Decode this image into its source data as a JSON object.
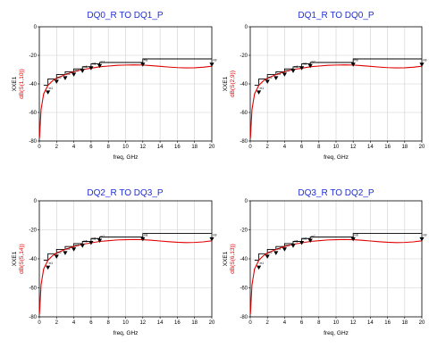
{
  "chart_data": [
    {
      "type": "line",
      "title": "DQ0_R TO DQ1_P",
      "xlabel": "freq, GHz",
      "ylabel_top": "XXE1",
      "ylabel": "dB(S(1,10))",
      "xlim": [
        0,
        20
      ],
      "ylim": [
        -80,
        0
      ],
      "xticks": [
        0,
        2,
        4,
        6,
        8,
        10,
        12,
        14,
        16,
        18,
        20
      ],
      "yticks": [
        0,
        -20,
        -40,
        -60,
        -80
      ],
      "grid": true,
      "series": [
        {
          "name": "dB(S(1,10))",
          "color": "#e00000",
          "x": [
            0.02,
            0.2,
            0.5,
            1,
            1.5,
            2,
            3,
            4,
            5,
            6,
            7,
            8,
            9,
            10,
            11,
            12,
            13,
            14,
            15,
            16,
            17,
            18,
            19,
            20
          ],
          "y": [
            -78,
            -58,
            -47,
            -41,
            -38,
            -36,
            -33.5,
            -31.5,
            -30,
            -29,
            -28,
            -27.5,
            -27,
            -26.8,
            -26.7,
            -26.8,
            -27.2,
            -27.7,
            -28.2,
            -28.6,
            -28.8,
            -28.7,
            -28.3,
            -27.6
          ]
        }
      ],
      "markers": {
        "x": [
          1,
          2,
          3,
          4,
          5,
          6,
          7,
          12,
          20
        ],
        "y": [
          -46.5,
          -39,
          -36.5,
          -34,
          -31.5,
          -29.5,
          -28,
          -27,
          -27
        ],
        "labels": [
          "m1",
          "m2",
          "m3",
          "m4",
          "m5",
          "m6",
          "m7",
          "m8",
          "m9"
        ]
      },
      "steps": {
        "x": [
          0.5,
          1,
          2,
          3,
          4,
          5,
          6,
          7,
          12,
          20
        ],
        "y": [
          -41,
          -36.5,
          -33.5,
          -31.5,
          -29.5,
          -28,
          -26,
          -25,
          -22.5,
          -22.5
        ]
      }
    },
    {
      "type": "line",
      "title": "DQ1_R TO DQ0_P",
      "xlabel": "freq, GHz",
      "ylabel_top": "XXE1",
      "ylabel": "dB(S(2,9))",
      "xlim": [
        0,
        20
      ],
      "ylim": [
        -80,
        0
      ],
      "xticks": [
        0,
        2,
        4,
        6,
        8,
        10,
        12,
        14,
        16,
        18,
        20
      ],
      "yticks": [
        0,
        -20,
        -40,
        -60,
        -80
      ],
      "grid": true,
      "series": [
        {
          "name": "dB(S(2,9))",
          "color": "#e00000",
          "x": [
            0.02,
            0.2,
            0.5,
            1,
            1.5,
            2,
            3,
            4,
            5,
            6,
            7,
            8,
            9,
            10,
            11,
            12,
            13,
            14,
            15,
            16,
            17,
            18,
            19,
            20
          ],
          "y": [
            -78,
            -58,
            -47,
            -41,
            -38,
            -36,
            -33.5,
            -31.5,
            -30,
            -29,
            -28,
            -27.5,
            -27,
            -26.8,
            -26.7,
            -26.8,
            -27.2,
            -27.7,
            -28.2,
            -28.6,
            -28.8,
            -28.7,
            -28.3,
            -27.6
          ]
        }
      ],
      "markers": {
        "x": [
          1,
          2,
          3,
          4,
          5,
          6,
          7,
          12,
          20
        ],
        "y": [
          -46.5,
          -39,
          -36.5,
          -34,
          -31.5,
          -29.5,
          -28,
          -27,
          -27
        ],
        "labels": [
          "m1",
          "m2",
          "m3",
          "m4",
          "m5",
          "m6",
          "m7",
          "m8",
          "m9"
        ]
      },
      "steps": {
        "x": [
          0.5,
          1,
          2,
          3,
          4,
          5,
          6,
          7,
          12,
          20
        ],
        "y": [
          -41,
          -36.5,
          -33.5,
          -31.5,
          -29.5,
          -28,
          -26,
          -25,
          -22.5,
          -22.5
        ]
      }
    },
    {
      "type": "line",
      "title": "DQ2_R TO DQ3_P",
      "xlabel": "freq, GHz",
      "ylabel_top": "XXE1",
      "ylabel": "dB(S(5,14))",
      "xlim": [
        0,
        20
      ],
      "ylim": [
        -80,
        0
      ],
      "xticks": [
        0,
        2,
        4,
        6,
        8,
        10,
        12,
        14,
        16,
        18,
        20
      ],
      "yticks": [
        0,
        -20,
        -40,
        -60,
        -80
      ],
      "grid": true,
      "series": [
        {
          "name": "dB(S(5,14))",
          "color": "#e00000",
          "x": [
            0.02,
            0.2,
            0.5,
            1,
            1.5,
            2,
            3,
            4,
            5,
            6,
            7,
            8,
            9,
            10,
            11,
            12,
            13,
            14,
            15,
            16,
            17,
            18,
            19,
            20
          ],
          "y": [
            -78,
            -58,
            -47,
            -41,
            -38,
            -36,
            -33.5,
            -31.5,
            -30,
            -29,
            -28,
            -27.5,
            -27,
            -26.8,
            -26.7,
            -26.8,
            -27.2,
            -27.7,
            -28.2,
            -28.6,
            -28.8,
            -28.7,
            -28.3,
            -27.6
          ]
        }
      ],
      "markers": {
        "x": [
          1,
          2,
          3,
          4,
          5,
          6,
          7,
          12,
          20
        ],
        "y": [
          -46.5,
          -39,
          -36.5,
          -34,
          -31.5,
          -29.5,
          -28,
          -27,
          -27
        ],
        "labels": [
          "m1",
          "m2",
          "m3",
          "m4",
          "m5",
          "m6",
          "m7",
          "m8",
          "m9"
        ]
      },
      "steps": {
        "x": [
          0.5,
          1,
          2,
          3,
          4,
          5,
          6,
          7,
          12,
          20
        ],
        "y": [
          -41,
          -36.5,
          -33.5,
          -31.5,
          -29.5,
          -28,
          -26,
          -25,
          -22.5,
          -22.5
        ]
      }
    },
    {
      "type": "line",
      "title": "DQ3_R TO DQ2_P",
      "xlabel": "freq, GHz",
      "ylabel_top": "XXE1",
      "ylabel": "dB(S(6,13))",
      "xlim": [
        0,
        20
      ],
      "ylim": [
        -80,
        0
      ],
      "xticks": [
        0,
        2,
        4,
        6,
        8,
        10,
        12,
        14,
        16,
        18,
        20
      ],
      "yticks": [
        0,
        -20,
        -40,
        -60,
        -80
      ],
      "grid": true,
      "series": [
        {
          "name": "dB(S(6,13))",
          "color": "#e00000",
          "x": [
            0.02,
            0.2,
            0.5,
            1,
            1.5,
            2,
            3,
            4,
            5,
            6,
            7,
            8,
            9,
            10,
            11,
            12,
            13,
            14,
            15,
            16,
            17,
            18,
            19,
            20
          ],
          "y": [
            -78,
            -58,
            -47,
            -41,
            -38,
            -36,
            -33.5,
            -31.5,
            -30,
            -29,
            -28,
            -27.5,
            -27,
            -26.8,
            -26.7,
            -26.8,
            -27.2,
            -27.7,
            -28.2,
            -28.6,
            -28.8,
            -28.7,
            -28.3,
            -27.6
          ]
        }
      ],
      "markers": {
        "x": [
          1,
          2,
          3,
          4,
          5,
          6,
          7,
          12,
          20
        ],
        "y": [
          -46.5,
          -39,
          -36.5,
          -34,
          -31.5,
          -29.5,
          -28,
          -27,
          -27
        ],
        "labels": [
          "m1",
          "m2",
          "m3",
          "m4",
          "m5",
          "m6",
          "m7",
          "m8",
          "m9"
        ]
      },
      "steps": {
        "x": [
          0.5,
          1,
          2,
          3,
          4,
          5,
          6,
          7,
          12,
          20
        ],
        "y": [
          -41,
          -36.5,
          -33.5,
          -31.5,
          -29.5,
          -28,
          -26,
          -25,
          -22.5,
          -22.5
        ]
      }
    }
  ]
}
